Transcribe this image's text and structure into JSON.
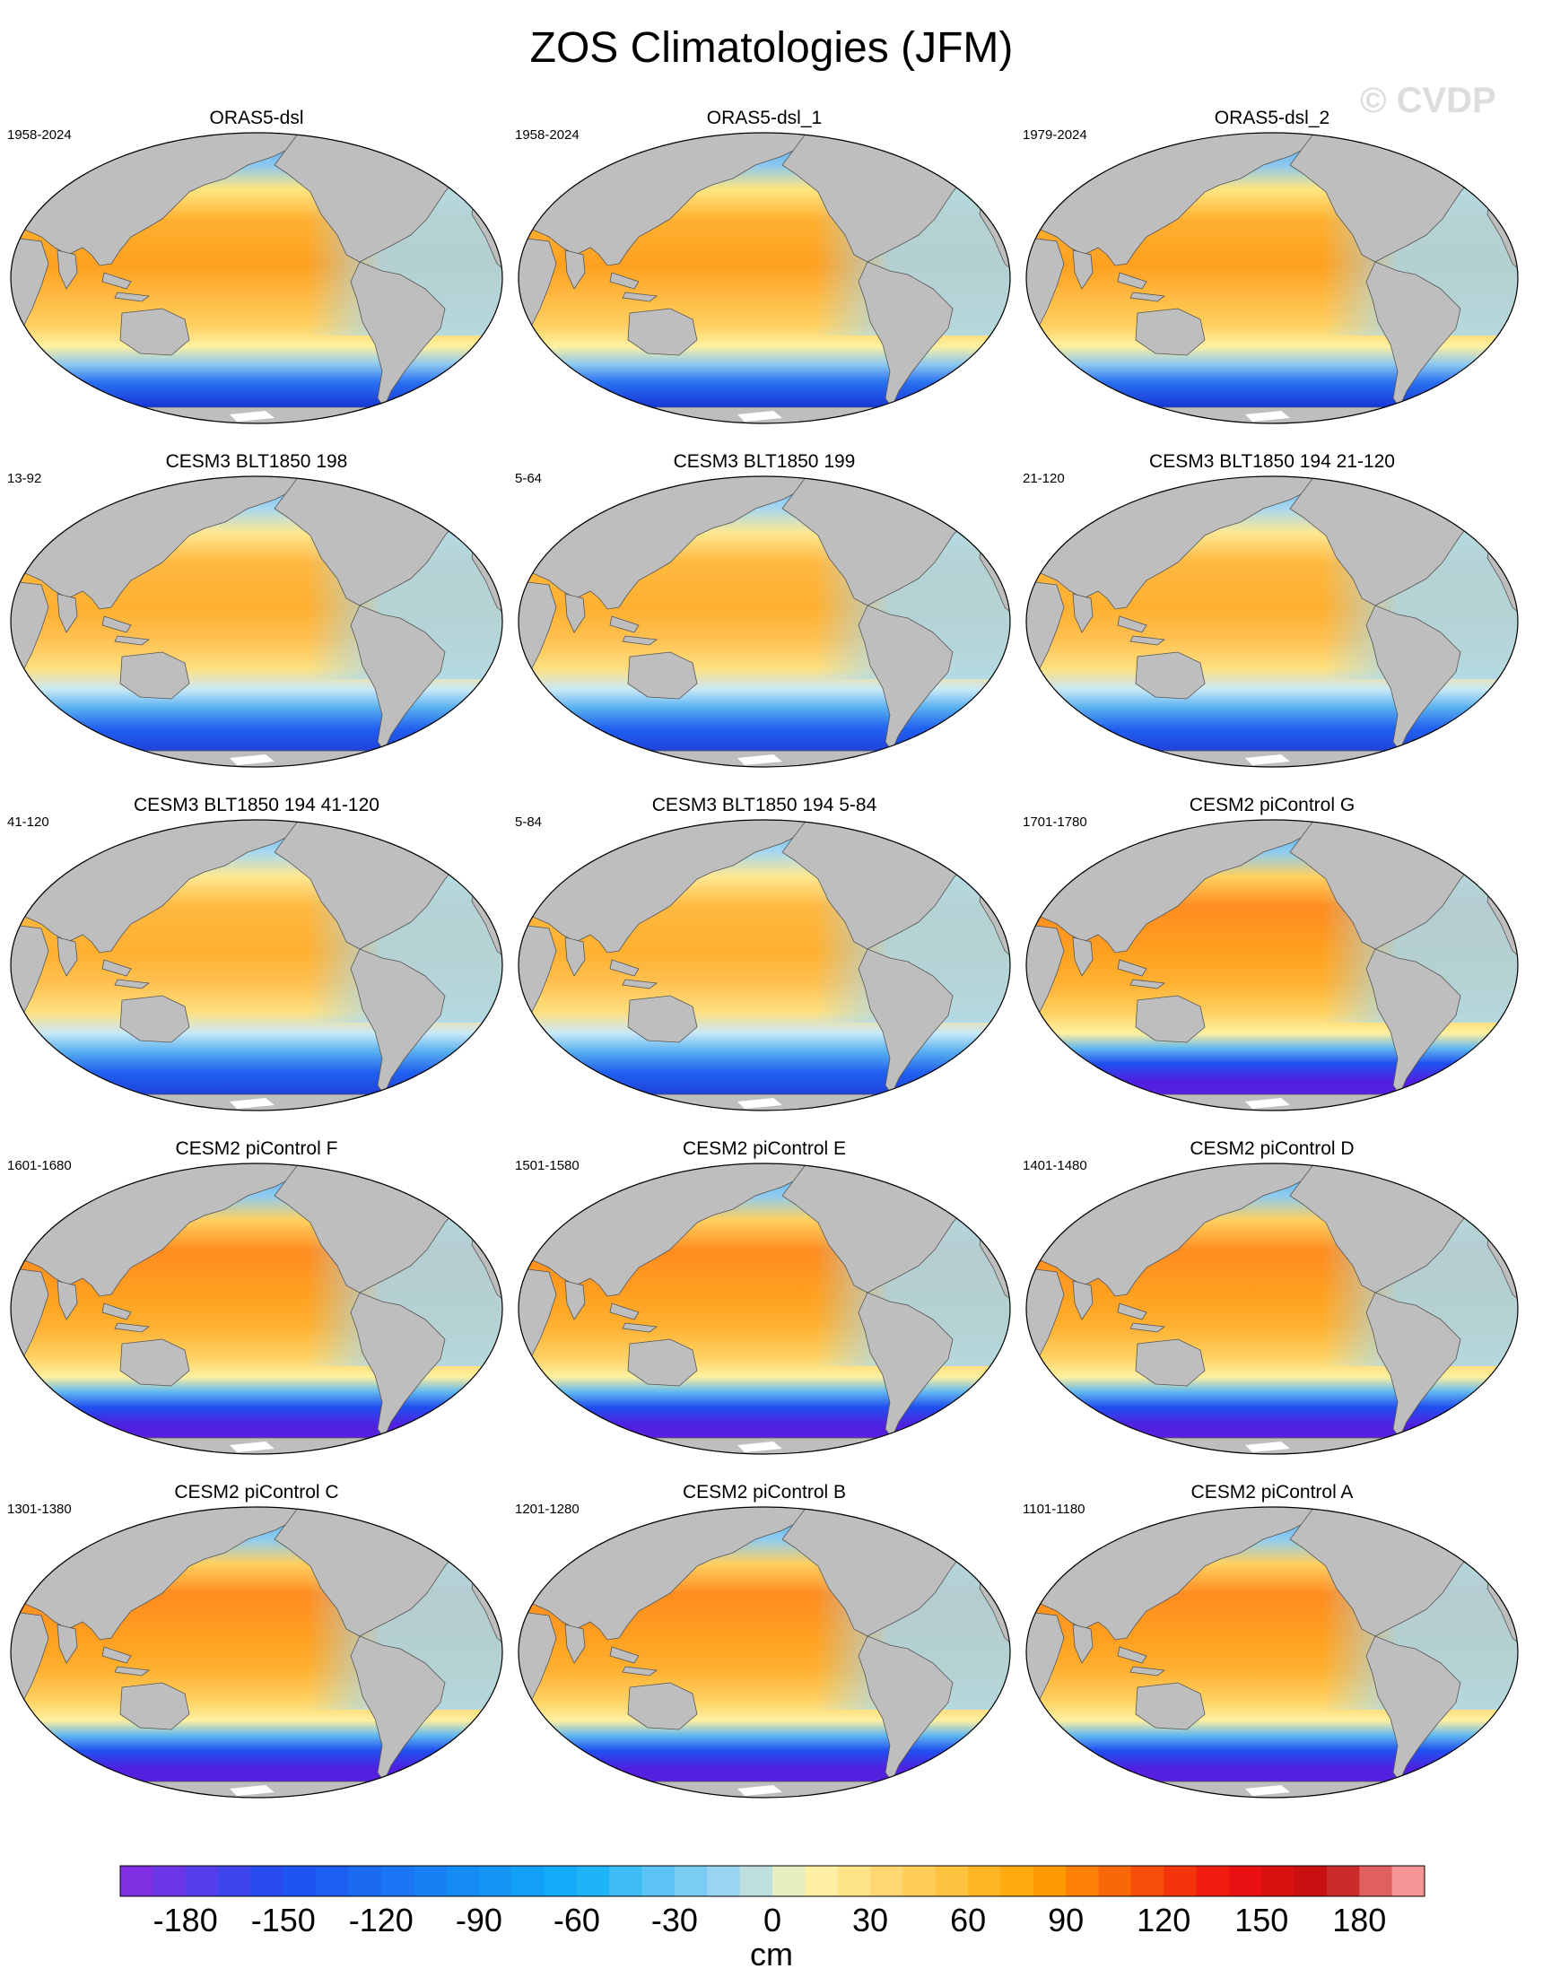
{
  "title": "ZOS Climatologies (JFM)",
  "watermark": "© CVDP",
  "panels": [
    {
      "title": "ORAS5-dsl",
      "period": "1958-2024",
      "style": "oras"
    },
    {
      "title": "ORAS5-dsl_1",
      "period": "1958-2024",
      "style": "oras"
    },
    {
      "title": "ORAS5-dsl_2",
      "period": "1979-2024",
      "style": "oras"
    },
    {
      "title": "CESM3 BLT1850 198",
      "period": "13-92",
      "style": "cesm3"
    },
    {
      "title": "CESM3 BLT1850 199",
      "period": "5-64",
      "style": "cesm3"
    },
    {
      "title": "CESM3 BLT1850 194 21-120",
      "period": "21-120",
      "style": "cesm3"
    },
    {
      "title": "CESM3 BLT1850 194 41-120",
      "period": "41-120",
      "style": "cesm3"
    },
    {
      "title": "CESM3 BLT1850 194 5-84",
      "period": "5-84",
      "style": "cesm3"
    },
    {
      "title": "CESM2 piControl G",
      "period": "1701-1780",
      "style": "cesm2"
    },
    {
      "title": "CESM2 piControl F",
      "period": "1601-1680",
      "style": "cesm2"
    },
    {
      "title": "CESM2 piControl E",
      "period": "1501-1580",
      "style": "cesm2"
    },
    {
      "title": "CESM2 piControl D",
      "period": "1401-1480",
      "style": "cesm2"
    },
    {
      "title": "CESM2 piControl C",
      "period": "1301-1380",
      "style": "cesm2"
    },
    {
      "title": "CESM2 piControl B",
      "period": "1201-1280",
      "style": "cesm2"
    },
    {
      "title": "CESM2 piControl A",
      "period": "1101-1180",
      "style": "cesm2"
    }
  ],
  "colorbar": {
    "label": "cm",
    "min": -200,
    "max": 200,
    "step": 10,
    "tick_labels": [
      "-180",
      "-150",
      "-120",
      "-90",
      "-60",
      "-30",
      "0",
      "30",
      "60",
      "90",
      "120",
      "150",
      "180"
    ],
    "colors": {
      "land": "#bebebe",
      "deep_negative": "#8b2be2",
      "negative": "#1e50f0",
      "light_negative": "#a8d8f0",
      "light_positive": "#fff5b0",
      "positive": "#ffa500",
      "strong_positive": "#f01010",
      "max_positive": "#ffb0b0"
    }
  }
}
